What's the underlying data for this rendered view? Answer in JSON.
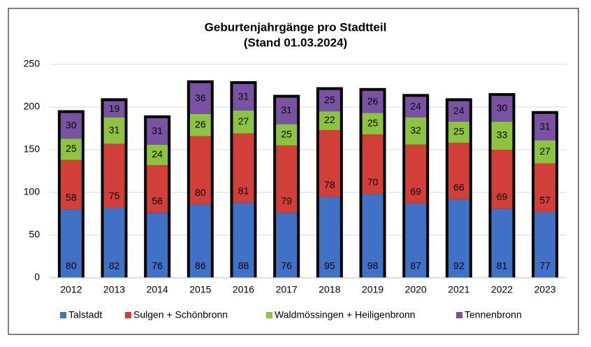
{
  "chart_data": {
    "type": "stacked_bar",
    "title": "Geburtenjahrgänge pro Stadtteil",
    "subtitle": "(Stand 01.03.2024)",
    "categories": [
      "2012",
      "2013",
      "2014",
      "2015",
      "2016",
      "2017",
      "2018",
      "2019",
      "2020",
      "2021",
      "2022",
      "2023"
    ],
    "series": [
      {
        "name": "Talstadt",
        "color": "#3f72c6",
        "values": [
          80,
          82,
          76,
          86,
          88,
          76,
          95,
          98,
          87,
          92,
          81,
          77
        ]
      },
      {
        "name": "Sulgen + Schönbronn",
        "color": "#d13f38",
        "values": [
          58,
          75,
          56,
          80,
          81,
          79,
          78,
          70,
          69,
          66,
          69,
          57
        ]
      },
      {
        "name": "Waldmössingen + Heiligenbronn",
        "color": "#8cc43f",
        "values": [
          25,
          31,
          24,
          26,
          27,
          25,
          22,
          25,
          32,
          25,
          33,
          27
        ]
      },
      {
        "name": "Tennenbronn",
        "color": "#7a52a3",
        "values": [
          30,
          19,
          31,
          36,
          31,
          31,
          25,
          26,
          24,
          24,
          30,
          31
        ]
      }
    ],
    "ylim": [
      0,
      250
    ],
    "yticks": [
      0,
      50,
      100,
      150,
      200,
      250
    ],
    "grid": true,
    "legend": "bottom"
  }
}
